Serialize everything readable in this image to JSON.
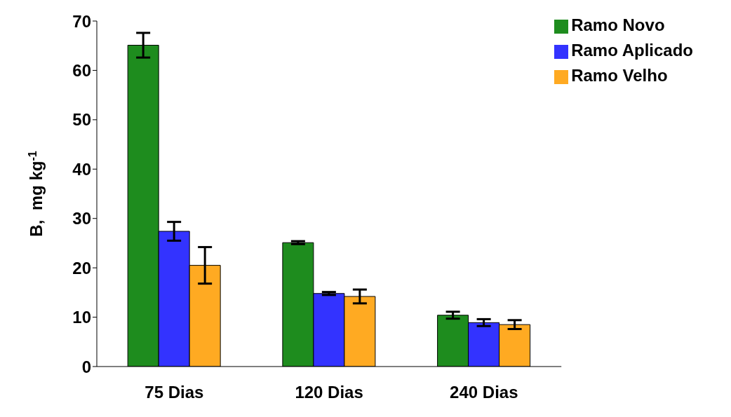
{
  "chart_data": {
    "type": "bar",
    "ylabel": "B,  mg kg$^{-1}$",
    "categories": [
      "75 Dias",
      "120 Dias",
      "240 Dias"
    ],
    "series": [
      {
        "name": "Ramo Novo",
        "color": "#1e8c1e",
        "values": [
          65.1,
          25.1,
          10.4
        ],
        "errors": [
          2.5,
          0.3,
          0.7
        ]
      },
      {
        "name": "Ramo Aplicado",
        "color": "#3333ff",
        "values": [
          27.4,
          14.8,
          8.9
        ],
        "errors": [
          1.9,
          0.3,
          0.7
        ]
      },
      {
        "name": "Ramo Velho",
        "color": "#ffaa22",
        "values": [
          20.5,
          14.2,
          8.5
        ],
        "errors": [
          3.7,
          1.4,
          0.9
        ]
      }
    ],
    "ylim": [
      0,
      70
    ],
    "yticks": [
      0,
      10,
      20,
      30,
      40,
      50,
      60,
      70
    ],
    "grid": false,
    "legend": "top right"
  }
}
